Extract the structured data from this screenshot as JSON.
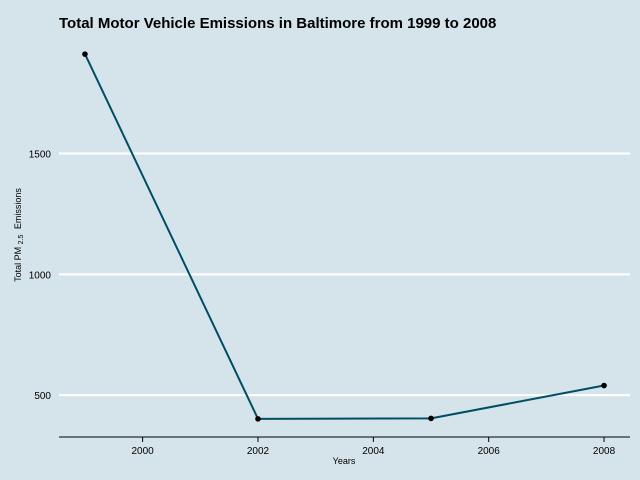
{
  "chart_data": {
    "type": "line",
    "title": "Total Motor Vehicle Emissions in Baltimore from 1999 to 2008",
    "xlabel": "Years",
    "ylabel_prefix": "Total PM",
    "ylabel_subscript": "2.5",
    "ylabel_suffix": "Emissions",
    "x": [
      1999,
      2002,
      2005,
      2008
    ],
    "values": [
      1911,
      402,
      404,
      540
    ],
    "x_ticks": [
      2000,
      2002,
      2004,
      2006,
      2008
    ],
    "x_tick_labels": [
      "2000",
      "2002",
      "2004",
      "2006",
      "2008"
    ],
    "y_ticks": [
      500,
      1000,
      1500
    ],
    "y_tick_labels": [
      "500",
      "1000",
      "1500"
    ],
    "xlim": [
      1998.55,
      2008.45
    ],
    "ylim": [
      327,
      1986
    ],
    "grid": "horizontal major lines",
    "legend": "none",
    "colors": {
      "background": "#d5e4eb",
      "line": "#014d64",
      "point": "#000000",
      "grid": "#ffffff",
      "axis": "#000000"
    }
  }
}
